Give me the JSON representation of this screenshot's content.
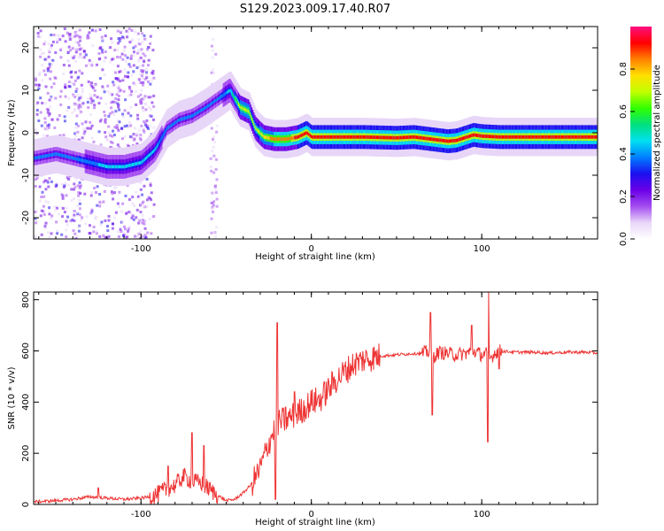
{
  "figure_title": "S129.2023.009.17.40.R07",
  "chart_data": [
    {
      "type": "heatmap",
      "xlabel": "Height of straight line (km)",
      "ylabel": "Frequency (Hz)",
      "xlim": [
        -163,
        168
      ],
      "ylim": [
        -25,
        25
      ],
      "x_ticks": [
        -100,
        0,
        100
      ],
      "y_ticks": [
        -20,
        -10,
        0,
        10,
        20
      ],
      "colorbar": {
        "label": "Normalized spectral amplitude",
        "range": [
          0,
          1
        ],
        "ticks": [
          "0.0",
          "0.2",
          "0.4",
          "0.6",
          "0.8"
        ],
        "colormap": [
          "#ffffff",
          "#e8d6f8",
          "#a44cf0",
          "#6a00e8",
          "#1a10f0",
          "#0080ff",
          "#00e0f0",
          "#00e080",
          "#30ff00",
          "#c0ff00",
          "#ffe000",
          "#ff8000",
          "#ff0000",
          "#ff1080"
        ]
      },
      "ridge": {
        "x": [
          -163,
          -150,
          -140,
          -130,
          -120,
          -110,
          -100,
          -92,
          -85,
          -78,
          -70,
          -62,
          -55,
          -48,
          -42,
          -37,
          -33,
          -28,
          -22,
          -15,
          -8,
          -3,
          0,
          10,
          30,
          50,
          60,
          70,
          80,
          85,
          95,
          100,
          110,
          130,
          150,
          168
        ],
        "y": [
          -6,
          -5,
          -6,
          -7,
          -8,
          -8,
          -7,
          -4,
          1,
          3,
          4,
          6,
          8,
          10,
          6,
          5,
          1,
          -1,
          -1.5,
          -1.5,
          -1,
          0,
          -1,
          -1,
          -1,
          -1.2,
          -1,
          -1.5,
          -2,
          -1.8,
          -0.5,
          -0.8,
          -1,
          -1,
          -1,
          -1
        ],
        "amplitude": [
          0.35,
          0.35,
          0.35,
          0.4,
          0.45,
          0.45,
          0.45,
          0.45,
          0.35,
          0.35,
          0.35,
          0.35,
          0.35,
          0.45,
          0.7,
          0.7,
          0.65,
          0.75,
          0.85,
          0.85,
          0.9,
          0.9,
          0.95,
          0.95,
          0.95,
          0.95,
          0.95,
          0.95,
          0.95,
          0.95,
          0.9,
          0.95,
          0.95,
          0.95,
          0.95,
          0.95
        ]
      }
    },
    {
      "type": "line",
      "xlabel": "Height of straight line (km)",
      "ylabel": "SNR (10 * v/v)",
      "xlim": [
        -163,
        168
      ],
      "ylim": [
        0,
        830
      ],
      "x_ticks": [
        -100,
        0,
        100
      ],
      "y_ticks": [
        0,
        200,
        400,
        600,
        800
      ],
      "color": "#ee3333",
      "series": [
        {
          "x": [
            -163,
            -150,
            -140,
            -130,
            -120,
            -110,
            -100,
            -95,
            -90,
            -85,
            -80,
            -75,
            -70,
            -65,
            -60,
            -55,
            -50,
            -45,
            -40,
            -35,
            -30,
            -25,
            -20,
            -15,
            -10,
            -5,
            0,
            5,
            10,
            15,
            20,
            25,
            30,
            40,
            50,
            60,
            65,
            70,
            72,
            75,
            80,
            85,
            90,
            95,
            100,
            103,
            105,
            108,
            110,
            120,
            130,
            140,
            150,
            160,
            168
          ],
          "y": [
            10,
            15,
            20,
            30,
            25,
            20,
            25,
            30,
            40,
            60,
            75,
            110,
            90,
            85,
            60,
            35,
            15,
            20,
            45,
            80,
            140,
            240,
            320,
            330,
            350,
            370,
            400,
            410,
            450,
            490,
            520,
            550,
            565,
            580,
            585,
            590,
            590,
            600,
            580,
            595,
            590,
            585,
            590,
            600,
            585,
            590,
            570,
            595,
            600,
            595,
            595,
            592,
            595,
            595,
            592
          ]
        }
      ],
      "spikes": [
        {
          "x": -125,
          "y": 65
        },
        {
          "x": -84,
          "y": 150
        },
        {
          "x": -70,
          "y": 280
        },
        {
          "x": -63,
          "y": 230
        },
        {
          "x": -20,
          "y": 710
        },
        {
          "x": -21,
          "y": 20
        },
        {
          "x": -15,
          "y": 380
        },
        {
          "x": -10,
          "y": 440
        },
        {
          "x": 70,
          "y": 750
        },
        {
          "x": 71,
          "y": 350
        },
        {
          "x": 94,
          "y": 700
        },
        {
          "x": 104,
          "y": 830
        },
        {
          "x": 103.5,
          "y": 245
        },
        {
          "x": 110,
          "y": 530
        }
      ]
    }
  ]
}
